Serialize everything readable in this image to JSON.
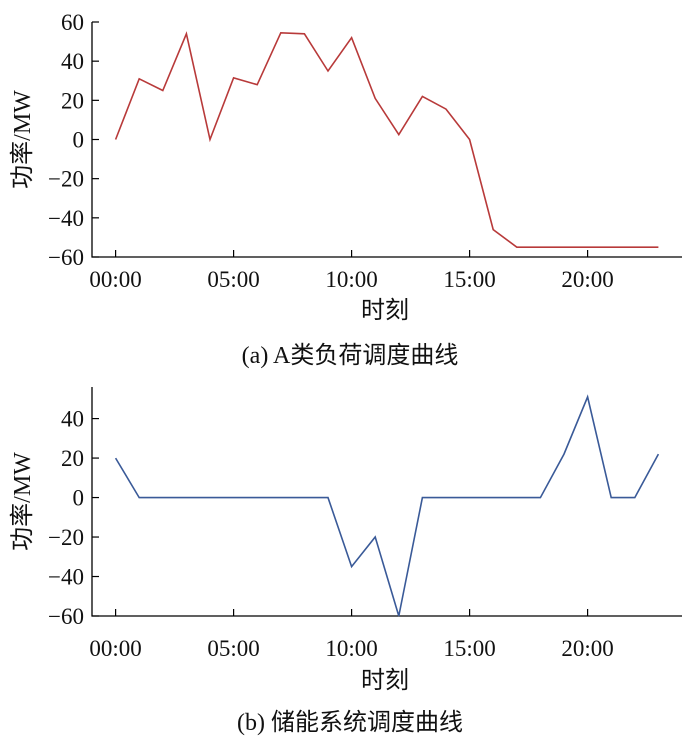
{
  "chart_data": [
    {
      "type": "line",
      "caption": "(a) A类负荷调度曲线",
      "xlabel": "时刻",
      "ylabel": "功率/MW",
      "xlim": [
        -1,
        24
      ],
      "ylim": [
        -60,
        60
      ],
      "xticks": [
        0,
        5,
        10,
        15,
        20
      ],
      "xtick_labels": [
        "00:00",
        "05:00",
        "10:00",
        "15:00",
        "20:00"
      ],
      "yticks": [
        -60,
        -40,
        -20,
        0,
        20,
        40,
        60
      ],
      "ytick_labels": [
        "-60",
        "-40",
        "-20",
        "0",
        "20",
        "40",
        "60"
      ],
      "grid": false,
      "color": "#b83a3a",
      "series": [
        {
          "x": [
            0,
            1,
            2,
            3,
            4,
            5,
            6,
            7,
            8,
            9,
            10,
            11,
            12,
            13,
            14,
            15,
            16,
            17,
            18,
            19,
            20,
            21,
            22,
            23
          ],
          "values": [
            0,
            31,
            25,
            54,
            0,
            31.5,
            28,
            54.5,
            54,
            35,
            52,
            21,
            2.5,
            22,
            15.5,
            0,
            -46,
            -55,
            -55,
            -55,
            -55,
            -55,
            -55,
            -55
          ]
        }
      ]
    },
    {
      "type": "line",
      "caption": "(b) 储能系统调度曲线",
      "xlabel": "时刻",
      "ylabel": "功率/MW",
      "xlim": [
        -1,
        24
      ],
      "ylim": [
        -60,
        56
      ],
      "xticks": [
        0,
        5,
        10,
        15,
        20
      ],
      "xtick_labels": [
        "00:00",
        "05:00",
        "10:00",
        "15:00",
        "20:00"
      ],
      "yticks": [
        -60,
        -40,
        -20,
        0,
        20,
        40
      ],
      "ytick_labels": [
        "-60",
        "-40",
        "-20",
        "0",
        "20",
        "40"
      ],
      "grid": false,
      "color": "#3a5a98",
      "series": [
        {
          "x": [
            0,
            1,
            2,
            3,
            4,
            5,
            6,
            7,
            8,
            9,
            10,
            11,
            12,
            13,
            14,
            15,
            16,
            17,
            18,
            19,
            20,
            21,
            22,
            23
          ],
          "values": [
            20,
            0,
            0,
            0,
            0,
            0,
            0,
            0,
            0,
            0,
            -35,
            -20,
            -60,
            0,
            0,
            0,
            0,
            0,
            0,
            22,
            51,
            0,
            0,
            22
          ]
        }
      ]
    }
  ]
}
